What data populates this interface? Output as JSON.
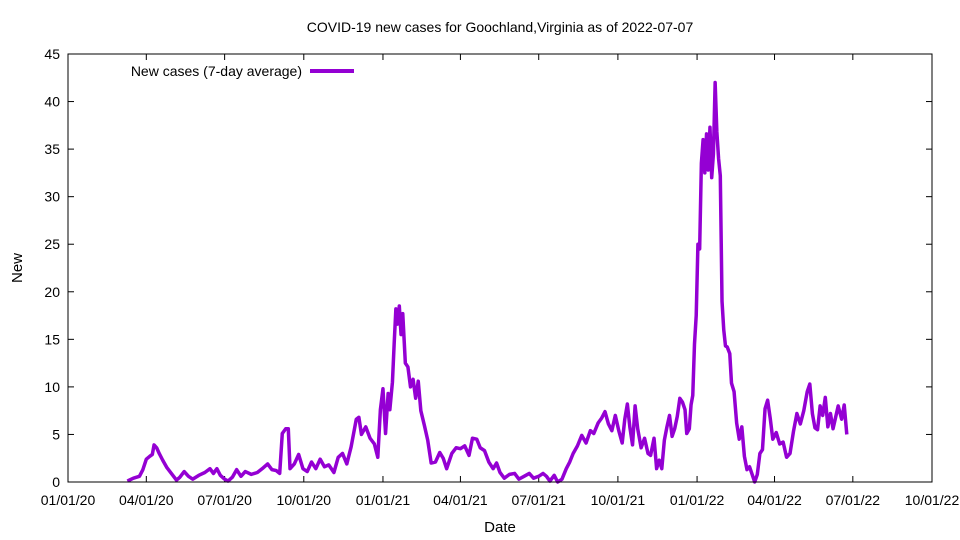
{
  "chart_data": {
    "type": "line",
    "title": "COVID-19 new cases for Goochland,Virginia as of 2022-07-07",
    "xlabel": "Date",
    "ylabel": "New",
    "x_ticks": [
      "01/01/20",
      "04/01/20",
      "07/01/20",
      "10/01/20",
      "01/01/21",
      "04/01/21",
      "07/01/21",
      "10/01/21",
      "01/01/22",
      "04/01/22",
      "07/01/22",
      "10/01/22"
    ],
    "xlim": [
      "2020-01-01",
      "2022-10-01"
    ],
    "ylim": [
      0,
      45
    ],
    "y_ticks": [
      0,
      5,
      10,
      15,
      20,
      25,
      30,
      35,
      40,
      45
    ],
    "grid": false,
    "legend_position": "top-left",
    "series": [
      {
        "name": "New cases (7-day average)",
        "color": "#9400d3",
        "points": [
          [
            "2020-03-10",
            0.1
          ],
          [
            "2020-03-17",
            0.4
          ],
          [
            "2020-03-24",
            0.6
          ],
          [
            "2020-03-28",
            1.3
          ],
          [
            "2020-04-01",
            2.4
          ],
          [
            "2020-04-05",
            2.7
          ],
          [
            "2020-04-08",
            2.9
          ],
          [
            "2020-04-10",
            3.9
          ],
          [
            "2020-04-13",
            3.6
          ],
          [
            "2020-04-16",
            3.0
          ],
          [
            "2020-04-20",
            2.3
          ],
          [
            "2020-04-25",
            1.5
          ],
          [
            "2020-05-01",
            0.8
          ],
          [
            "2020-05-06",
            0.2
          ],
          [
            "2020-05-10",
            0.5
          ],
          [
            "2020-05-15",
            1.1
          ],
          [
            "2020-05-20",
            0.6
          ],
          [
            "2020-05-25",
            0.3
          ],
          [
            "2020-06-01",
            0.7
          ],
          [
            "2020-06-08",
            1.0
          ],
          [
            "2020-06-14",
            1.4
          ],
          [
            "2020-06-18",
            0.9
          ],
          [
            "2020-06-22",
            1.4
          ],
          [
            "2020-06-26",
            0.7
          ],
          [
            "2020-07-01",
            0.3
          ],
          [
            "2020-07-05",
            0.1
          ],
          [
            "2020-07-10",
            0.5
          ],
          [
            "2020-07-15",
            1.3
          ],
          [
            "2020-07-20",
            0.6
          ],
          [
            "2020-07-25",
            1.1
          ],
          [
            "2020-08-01",
            0.8
          ],
          [
            "2020-08-08",
            1.0
          ],
          [
            "2020-08-15",
            1.5
          ],
          [
            "2020-08-20",
            1.9
          ],
          [
            "2020-08-25",
            1.3
          ],
          [
            "2020-08-30",
            1.2
          ],
          [
            "2020-09-03",
            0.9
          ],
          [
            "2020-09-06",
            5.1
          ],
          [
            "2020-09-10",
            5.6
          ],
          [
            "2020-09-13",
            5.6
          ],
          [
            "2020-09-15",
            1.4
          ],
          [
            "2020-09-20",
            1.9
          ],
          [
            "2020-09-25",
            2.9
          ],
          [
            "2020-09-30",
            1.4
          ],
          [
            "2020-10-05",
            1.1
          ],
          [
            "2020-10-10",
            2.1
          ],
          [
            "2020-10-15",
            1.4
          ],
          [
            "2020-10-20",
            2.4
          ],
          [
            "2020-10-25",
            1.6
          ],
          [
            "2020-10-30",
            1.8
          ],
          [
            "2020-11-05",
            1.0
          ],
          [
            "2020-11-10",
            2.6
          ],
          [
            "2020-11-15",
            3.0
          ],
          [
            "2020-11-20",
            1.9
          ],
          [
            "2020-11-25",
            3.7
          ],
          [
            "2020-12-01",
            6.6
          ],
          [
            "2020-12-04",
            6.8
          ],
          [
            "2020-12-07",
            5.0
          ],
          [
            "2020-12-12",
            5.8
          ],
          [
            "2020-12-17",
            4.6
          ],
          [
            "2020-12-22",
            4.0
          ],
          [
            "2020-12-26",
            2.6
          ],
          [
            "2020-12-29",
            7.6
          ],
          [
            "2021-01-01",
            9.8
          ],
          [
            "2021-01-04",
            5.1
          ],
          [
            "2021-01-07",
            9.3
          ],
          [
            "2021-01-09",
            7.6
          ],
          [
            "2021-01-12",
            10.5
          ],
          [
            "2021-01-14",
            14.5
          ],
          [
            "2021-01-16",
            18.2
          ],
          [
            "2021-01-18",
            16.6
          ],
          [
            "2021-01-20",
            18.5
          ],
          [
            "2021-01-22",
            15.5
          ],
          [
            "2021-01-24",
            17.7
          ],
          [
            "2021-01-27",
            12.5
          ],
          [
            "2021-01-30",
            12.1
          ],
          [
            "2021-02-02",
            10.0
          ],
          [
            "2021-02-05",
            10.8
          ],
          [
            "2021-02-08",
            8.8
          ],
          [
            "2021-02-11",
            10.6
          ],
          [
            "2021-02-14",
            7.5
          ],
          [
            "2021-02-18",
            6.0
          ],
          [
            "2021-02-22",
            4.4
          ],
          [
            "2021-02-26",
            2.0
          ],
          [
            "2021-03-03",
            2.1
          ],
          [
            "2021-03-08",
            3.1
          ],
          [
            "2021-03-12",
            2.5
          ],
          [
            "2021-03-16",
            1.4
          ],
          [
            "2021-03-22",
            3.0
          ],
          [
            "2021-03-27",
            3.6
          ],
          [
            "2021-04-01",
            3.5
          ],
          [
            "2021-04-06",
            3.8
          ],
          [
            "2021-04-11",
            2.8
          ],
          [
            "2021-04-15",
            4.6
          ],
          [
            "2021-04-20",
            4.5
          ],
          [
            "2021-04-24",
            3.6
          ],
          [
            "2021-04-29",
            3.3
          ],
          [
            "2021-05-04",
            2.1
          ],
          [
            "2021-05-09",
            1.4
          ],
          [
            "2021-05-13",
            2.0
          ],
          [
            "2021-05-17",
            1.0
          ],
          [
            "2021-05-22",
            0.4
          ],
          [
            "2021-05-28",
            0.8
          ],
          [
            "2021-06-03",
            0.9
          ],
          [
            "2021-06-08",
            0.3
          ],
          [
            "2021-06-14",
            0.6
          ],
          [
            "2021-06-20",
            0.9
          ],
          [
            "2021-06-25",
            0.4
          ],
          [
            "2021-07-01",
            0.6
          ],
          [
            "2021-07-06",
            0.9
          ],
          [
            "2021-07-10",
            0.6
          ],
          [
            "2021-07-14",
            0.1
          ],
          [
            "2021-07-19",
            0.7
          ],
          [
            "2021-07-23",
            0.0
          ],
          [
            "2021-07-28",
            0.3
          ],
          [
            "2021-08-02",
            1.4
          ],
          [
            "2021-08-06",
            2.1
          ],
          [
            "2021-08-10",
            3.0
          ],
          [
            "2021-08-15",
            3.8
          ],
          [
            "2021-08-20",
            4.9
          ],
          [
            "2021-08-25",
            4.1
          ],
          [
            "2021-08-30",
            5.4
          ],
          [
            "2021-09-03",
            5.1
          ],
          [
            "2021-09-08",
            6.2
          ],
          [
            "2021-09-12",
            6.7
          ],
          [
            "2021-09-16",
            7.4
          ],
          [
            "2021-09-20",
            6.1
          ],
          [
            "2021-09-24",
            5.4
          ],
          [
            "2021-09-28",
            7.0
          ],
          [
            "2021-10-02",
            5.4
          ],
          [
            "2021-10-06",
            4.1
          ],
          [
            "2021-10-09",
            6.6
          ],
          [
            "2021-10-12",
            8.2
          ],
          [
            "2021-10-15",
            5.7
          ],
          [
            "2021-10-18",
            3.9
          ],
          [
            "2021-10-21",
            8.0
          ],
          [
            "2021-10-24",
            5.6
          ],
          [
            "2021-10-28",
            3.6
          ],
          [
            "2021-11-01",
            4.6
          ],
          [
            "2021-11-05",
            3.0
          ],
          [
            "2021-11-08",
            2.8
          ],
          [
            "2021-11-12",
            4.6
          ],
          [
            "2021-11-15",
            1.4
          ],
          [
            "2021-11-18",
            2.3
          ],
          [
            "2021-11-21",
            1.4
          ],
          [
            "2021-11-24",
            4.4
          ],
          [
            "2021-11-27",
            5.8
          ],
          [
            "2021-11-30",
            7.0
          ],
          [
            "2021-12-03",
            4.8
          ],
          [
            "2021-12-06",
            5.6
          ],
          [
            "2021-12-09",
            6.9
          ],
          [
            "2021-12-12",
            8.8
          ],
          [
            "2021-12-15",
            8.4
          ],
          [
            "2021-12-18",
            7.6
          ],
          [
            "2021-12-20",
            5.1
          ],
          [
            "2021-12-23",
            5.6
          ],
          [
            "2021-12-25",
            8.1
          ],
          [
            "2021-12-27",
            9.1
          ],
          [
            "2021-12-29",
            14.5
          ],
          [
            "2021-12-31",
            17.5
          ],
          [
            "2022-01-02",
            25.0
          ],
          [
            "2022-01-04",
            24.5
          ],
          [
            "2022-01-06",
            33.5
          ],
          [
            "2022-01-08",
            36.0
          ],
          [
            "2022-01-10",
            32.5
          ],
          [
            "2022-01-12",
            36.6
          ],
          [
            "2022-01-14",
            32.8
          ],
          [
            "2022-01-16",
            37.3
          ],
          [
            "2022-01-18",
            32.0
          ],
          [
            "2022-01-20",
            34.5
          ],
          [
            "2022-01-22",
            42.0
          ],
          [
            "2022-01-24",
            36.8
          ],
          [
            "2022-01-26",
            34.0
          ],
          [
            "2022-01-28",
            32.2
          ],
          [
            "2022-01-30",
            19.0
          ],
          [
            "2022-02-01",
            16.0
          ],
          [
            "2022-02-03",
            14.3
          ],
          [
            "2022-02-05",
            14.2
          ],
          [
            "2022-02-08",
            13.5
          ],
          [
            "2022-02-10",
            10.4
          ],
          [
            "2022-02-13",
            9.5
          ],
          [
            "2022-02-16",
            6.2
          ],
          [
            "2022-02-19",
            4.5
          ],
          [
            "2022-02-22",
            5.8
          ],
          [
            "2022-02-25",
            2.7
          ],
          [
            "2022-02-28",
            1.3
          ],
          [
            "2022-03-03",
            1.6
          ],
          [
            "2022-03-06",
            0.8
          ],
          [
            "2022-03-09",
            0.0
          ],
          [
            "2022-03-12",
            0.8
          ],
          [
            "2022-03-15",
            3.0
          ],
          [
            "2022-03-18",
            3.4
          ],
          [
            "2022-03-21",
            7.7
          ],
          [
            "2022-03-24",
            8.6
          ],
          [
            "2022-03-27",
            6.7
          ],
          [
            "2022-03-30",
            4.5
          ],
          [
            "2022-04-03",
            5.2
          ],
          [
            "2022-04-07",
            4.0
          ],
          [
            "2022-04-11",
            4.2
          ],
          [
            "2022-04-15",
            2.6
          ],
          [
            "2022-04-19",
            3.0
          ],
          [
            "2022-04-23",
            5.3
          ],
          [
            "2022-04-27",
            7.2
          ],
          [
            "2022-05-01",
            6.1
          ],
          [
            "2022-05-05",
            7.5
          ],
          [
            "2022-05-09",
            9.5
          ],
          [
            "2022-05-12",
            10.3
          ],
          [
            "2022-05-15",
            7.2
          ],
          [
            "2022-05-18",
            5.7
          ],
          [
            "2022-05-21",
            5.5
          ],
          [
            "2022-05-24",
            8.0
          ],
          [
            "2022-05-27",
            7.0
          ],
          [
            "2022-05-30",
            8.9
          ],
          [
            "2022-06-02",
            5.8
          ],
          [
            "2022-06-05",
            7.2
          ],
          [
            "2022-06-08",
            5.6
          ],
          [
            "2022-06-11",
            6.8
          ],
          [
            "2022-06-14",
            8.0
          ],
          [
            "2022-06-18",
            6.6
          ],
          [
            "2022-06-21",
            8.1
          ],
          [
            "2022-06-24",
            5.0
          ]
        ]
      }
    ]
  }
}
